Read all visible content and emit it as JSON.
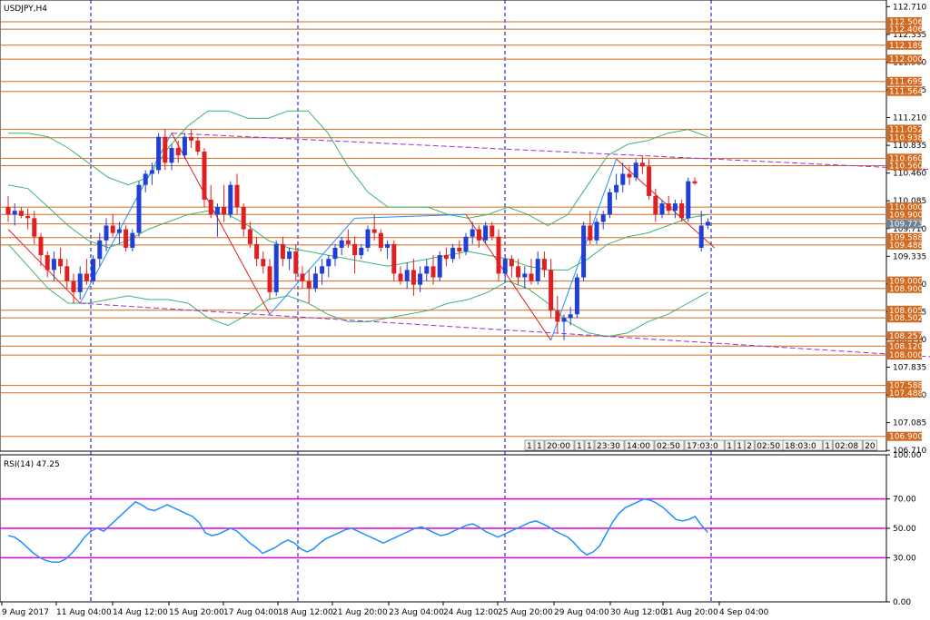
{
  "window_title": "USDJPY,H4",
  "colors": {
    "bull": "#1f3fd6",
    "bear": "#e02020",
    "hline": "#d2691e",
    "trend": "#9932cc",
    "bollinger": "#3cb371",
    "zigzag_up": "#1e90ff",
    "zigzag_down": "#e02020",
    "rsi": "#1e90ff",
    "rsi_levels": "#e000e0",
    "vgrid": "#0000cc"
  },
  "chart_data": [
    {
      "type": "candlestick",
      "title": "USDJPY,H4",
      "ylim": [
        106.7,
        112.8
      ],
      "y_ticks": [
        "112.710",
        "112.335",
        "111.960",
        "111.585",
        "111.210",
        "110.835",
        "110.460",
        "110.085",
        "109.710",
        "109.335",
        "108.960",
        "108.585",
        "108.210",
        "107.835",
        "107.460",
        "107.085",
        "106.710"
      ],
      "x_ticks": [
        "9 Aug 2017",
        "11 Aug 04:00",
        "14 Aug 12:00",
        "15 Aug 20:00",
        "17 Aug 04:00",
        "18 Aug 12:00",
        "21 Aug 20:00",
        "23 Aug 04:00",
        "24 Aug 12:00",
        "25 Aug 20:00",
        "29 Aug 04:00",
        "30 Aug 12:00",
        "31 Aug 20:00",
        "4 Sep 04:00"
      ],
      "horizontal_levels": [
        "112.506",
        "112.406",
        "112.189",
        "112.000",
        "111.699",
        "111.564",
        "111.052",
        "110.938",
        "110.660",
        "110.560",
        "110.000",
        "109.900",
        "109.773",
        "109.588",
        "109.488",
        "109.000",
        "108.900",
        "108.605",
        "108.502",
        "108.257",
        "108.120",
        "108.000",
        "107.588",
        "107.488",
        "106.900"
      ],
      "current_price": "109.773",
      "candles": [
        [
          110.0,
          110.15,
          109.8,
          109.9
        ],
        [
          109.9,
          110.05,
          109.75,
          109.95
        ],
        [
          109.95,
          110.0,
          109.85,
          109.88
        ],
        [
          109.88,
          109.98,
          109.7,
          109.85
        ],
        [
          109.85,
          109.95,
          109.5,
          109.6
        ],
        [
          109.6,
          109.65,
          109.2,
          109.35
        ],
        [
          109.35,
          109.4,
          109.05,
          109.15
        ],
        [
          109.15,
          109.4,
          109.0,
          109.3
        ],
        [
          109.3,
          109.45,
          109.1,
          109.2
        ],
        [
          109.2,
          109.3,
          108.9,
          109.0
        ],
        [
          109.0,
          109.1,
          108.7,
          108.85
        ],
        [
          108.85,
          109.2,
          108.75,
          109.1
        ],
        [
          109.1,
          109.3,
          108.95,
          109.0
        ],
        [
          109.0,
          109.35,
          108.95,
          109.3
        ],
        [
          109.3,
          109.65,
          109.2,
          109.55
        ],
        [
          109.55,
          109.85,
          109.4,
          109.75
        ],
        [
          109.75,
          109.9,
          109.6,
          109.65
        ],
        [
          109.65,
          109.8,
          109.5,
          109.7
        ],
        [
          109.7,
          109.75,
          109.4,
          109.45
        ],
        [
          109.45,
          109.7,
          109.4,
          109.65
        ],
        [
          109.65,
          110.35,
          109.6,
          110.3
        ],
        [
          110.3,
          110.5,
          110.2,
          110.45
        ],
        [
          110.45,
          110.6,
          110.3,
          110.5
        ],
        [
          110.5,
          111.0,
          110.45,
          110.95
        ],
        [
          110.95,
          111.05,
          110.5,
          110.6
        ],
        [
          110.6,
          110.85,
          110.5,
          110.8
        ],
        [
          110.8,
          110.9,
          110.6,
          110.7
        ],
        [
          110.7,
          111.0,
          110.65,
          110.95
        ],
        [
          110.95,
          111.05,
          110.8,
          110.9
        ],
        [
          110.9,
          110.95,
          110.7,
          110.75
        ],
        [
          110.75,
          110.8,
          110.0,
          110.1
        ],
        [
          110.1,
          110.3,
          109.85,
          109.9
        ],
        [
          109.9,
          110.05,
          109.6,
          110.0
        ],
        [
          110.0,
          110.3,
          109.8,
          109.9
        ],
        [
          109.9,
          110.35,
          109.85,
          110.3
        ],
        [
          110.3,
          110.45,
          109.9,
          110.0
        ],
        [
          110.0,
          110.05,
          109.6,
          109.7
        ],
        [
          109.7,
          109.8,
          109.45,
          109.5
        ],
        [
          109.5,
          109.6,
          109.2,
          109.3
        ],
        [
          109.3,
          109.4,
          109.1,
          109.2
        ],
        [
          109.2,
          109.3,
          108.75,
          108.85
        ],
        [
          108.85,
          109.55,
          108.8,
          109.5
        ],
        [
          109.5,
          109.6,
          109.2,
          109.3
        ],
        [
          109.3,
          109.45,
          109.15,
          109.4
        ],
        [
          109.4,
          109.5,
          109.0,
          109.1
        ],
        [
          109.1,
          109.2,
          108.9,
          109.0
        ],
        [
          109.0,
          109.15,
          108.7,
          108.9
        ],
        [
          108.9,
          109.2,
          108.85,
          109.1
        ],
        [
          109.1,
          109.3,
          108.95,
          109.2
        ],
        [
          109.2,
          109.35,
          109.05,
          109.3
        ],
        [
          109.3,
          109.5,
          109.2,
          109.45
        ],
        [
          109.45,
          109.6,
          109.35,
          109.55
        ],
        [
          109.55,
          109.7,
          109.45,
          109.5
        ],
        [
          109.5,
          109.6,
          109.1,
          109.35
        ],
        [
          109.35,
          109.5,
          109.3,
          109.45
        ],
        [
          109.45,
          109.75,
          109.4,
          109.7
        ],
        [
          109.7,
          109.9,
          109.55,
          109.65
        ],
        [
          109.65,
          109.7,
          109.4,
          109.45
        ],
        [
          109.45,
          109.55,
          109.3,
          109.5
        ],
        [
          109.5,
          109.55,
          109.0,
          109.1
        ],
        [
          109.1,
          109.2,
          108.95,
          109.0
        ],
        [
          109.0,
          109.25,
          108.9,
          109.15
        ],
        [
          109.15,
          109.3,
          108.8,
          108.95
        ],
        [
          108.95,
          109.2,
          108.85,
          109.1
        ],
        [
          109.1,
          109.3,
          109.0,
          109.2
        ],
        [
          109.2,
          109.35,
          108.95,
          109.05
        ],
        [
          109.05,
          109.4,
          109.0,
          109.35
        ],
        [
          109.35,
          109.45,
          109.2,
          109.3
        ],
        [
          109.3,
          109.5,
          109.25,
          109.45
        ],
        [
          109.45,
          109.55,
          109.3,
          109.4
        ],
        [
          109.4,
          109.65,
          109.35,
          109.6
        ],
        [
          109.6,
          109.8,
          109.5,
          109.7
        ],
        [
          109.7,
          109.75,
          109.45,
          109.55
        ],
        [
          109.55,
          109.8,
          109.5,
          109.75
        ],
        [
          109.75,
          109.8,
          109.55,
          109.6
        ],
        [
          109.6,
          109.7,
          109.0,
          109.1
        ],
        [
          109.1,
          109.35,
          109.0,
          109.3
        ],
        [
          109.3,
          109.35,
          109.05,
          109.2
        ],
        [
          109.2,
          109.3,
          108.95,
          109.05
        ],
        [
          109.05,
          109.2,
          108.9,
          109.1
        ],
        [
          109.1,
          109.3,
          108.95,
          109.0
        ],
        [
          109.0,
          109.4,
          108.95,
          109.3
        ],
        [
          109.3,
          109.4,
          109.05,
          109.15
        ],
        [
          109.15,
          109.3,
          108.5,
          108.6
        ],
        [
          108.6,
          108.8,
          108.3,
          108.45
        ],
        [
          108.45,
          108.55,
          108.2,
          108.5
        ],
        [
          108.5,
          108.65,
          108.4,
          108.55
        ],
        [
          108.55,
          109.1,
          108.5,
          109.05
        ],
        [
          109.05,
          109.8,
          109.0,
          109.75
        ],
        [
          109.75,
          109.95,
          109.5,
          109.55
        ],
        [
          109.55,
          109.85,
          109.5,
          109.8
        ],
        [
          109.8,
          109.95,
          109.7,
          109.9
        ],
        [
          109.9,
          110.25,
          109.85,
          110.2
        ],
        [
          110.2,
          110.45,
          110.1,
          110.3
        ],
        [
          110.3,
          110.6,
          110.2,
          110.45
        ],
        [
          110.45,
          110.55,
          110.3,
          110.4
        ],
        [
          110.4,
          110.65,
          110.35,
          110.6
        ],
        [
          110.6,
          110.7,
          110.45,
          110.55
        ],
        [
          110.55,
          110.65,
          110.1,
          110.15
        ],
        [
          110.15,
          110.25,
          109.8,
          109.9
        ],
        [
          109.9,
          110.1,
          109.85,
          110.05
        ],
        [
          110.05,
          110.15,
          109.9,
          109.95
        ],
        [
          109.95,
          110.1,
          109.85,
          110.05
        ],
        [
          110.05,
          110.1,
          109.8,
          109.85
        ],
        [
          109.85,
          110.4,
          109.8,
          110.35
        ],
        [
          110.35,
          110.4,
          110.3,
          110.32
        ],
        [
          109.45,
          109.95,
          109.4,
          109.75
        ],
        [
          109.75,
          109.85,
          109.7,
          109.8
        ]
      ],
      "bollinger_upper": [
        111.0,
        111.0,
        110.95,
        110.8,
        110.6,
        110.4,
        110.3,
        110.4,
        110.8,
        111.1,
        111.3,
        111.3,
        111.2,
        111.2,
        111.3,
        111.3,
        111.0,
        110.55,
        110.2,
        110.0,
        110.0,
        110.0,
        109.9,
        109.85,
        109.9,
        110.0,
        109.9,
        109.75,
        109.9,
        110.3,
        110.7,
        110.85,
        110.9,
        111.0,
        111.05,
        110.95
      ],
      "bollinger_middle": [
        110.3,
        110.25,
        110.0,
        109.75,
        109.55,
        109.45,
        109.55,
        109.7,
        109.8,
        109.9,
        109.95,
        109.9,
        109.75,
        109.55,
        109.45,
        109.4,
        109.35,
        109.3,
        109.25,
        109.2,
        109.25,
        109.3,
        109.35,
        109.4,
        109.35,
        109.3,
        109.2,
        109.15,
        109.15,
        109.3,
        109.5,
        109.6,
        109.65,
        109.75,
        109.85,
        109.9
      ],
      "bollinger_lower": [
        109.5,
        109.2,
        108.9,
        108.7,
        108.7,
        108.75,
        108.8,
        108.75,
        108.75,
        108.7,
        108.5,
        108.4,
        108.55,
        108.75,
        108.8,
        108.7,
        108.55,
        108.45,
        108.45,
        108.5,
        108.55,
        108.6,
        108.7,
        108.75,
        108.85,
        109.0,
        108.9,
        108.7,
        108.45,
        108.3,
        108.25,
        108.3,
        108.45,
        108.55,
        108.7,
        108.85
      ],
      "zigzag": [
        [
          0,
          109.7
        ],
        [
          11,
          108.7
        ],
        [
          25,
          111.0
        ],
        [
          40,
          108.55
        ],
        [
          53,
          109.85
        ],
        [
          70,
          109.9
        ],
        [
          83,
          108.2
        ],
        [
          93,
          110.65
        ],
        [
          108,
          109.45
        ]
      ],
      "trendlines": [
        [
          [
            25,
            111.0
          ],
          [
            155,
            110.45
          ]
        ],
        [
          [
            11,
            108.7
          ],
          [
            155,
            107.9
          ]
        ]
      ]
    },
    {
      "type": "line",
      "title": "RSI(14) 47.25",
      "ylim": [
        0,
        100
      ],
      "y_ticks": [
        "100.00",
        "70.00",
        "50.00",
        "30.00",
        "0.00"
      ],
      "levels": [
        70,
        50,
        30
      ],
      "values": [
        45,
        44,
        41,
        37,
        33,
        30,
        28,
        27,
        27,
        29,
        33,
        38,
        44,
        48,
        50,
        48,
        52,
        56,
        60,
        64,
        68,
        66,
        63,
        62,
        64,
        66,
        64,
        62,
        60,
        58,
        54,
        47,
        45,
        46,
        48,
        50,
        48,
        44,
        40,
        37,
        33,
        35,
        37,
        40,
        42,
        40,
        36,
        34,
        36,
        40,
        43,
        45,
        47,
        49,
        50,
        48,
        46,
        44,
        42,
        40,
        42,
        44,
        46,
        48,
        50,
        51,
        49,
        47,
        45,
        46,
        48,
        50,
        52,
        53,
        51,
        48,
        46,
        44,
        46,
        48,
        50,
        52,
        54,
        55,
        53,
        51,
        48,
        46,
        44,
        40,
        35,
        32,
        34,
        38,
        46,
        54,
        60,
        64,
        66,
        68,
        70,
        69,
        67,
        64,
        60,
        56,
        55,
        56,
        58,
        52,
        47.25
      ],
      "current": "47.25"
    }
  ],
  "time_stamps_bar": [
    "1",
    "1",
    "20:00",
    "1",
    "1",
    "23:30",
    "14:00",
    "02:50",
    "17:03:0",
    "1",
    "1",
    "2",
    "02:50",
    "18:03:0",
    "1",
    "02:08",
    "20"
  ]
}
